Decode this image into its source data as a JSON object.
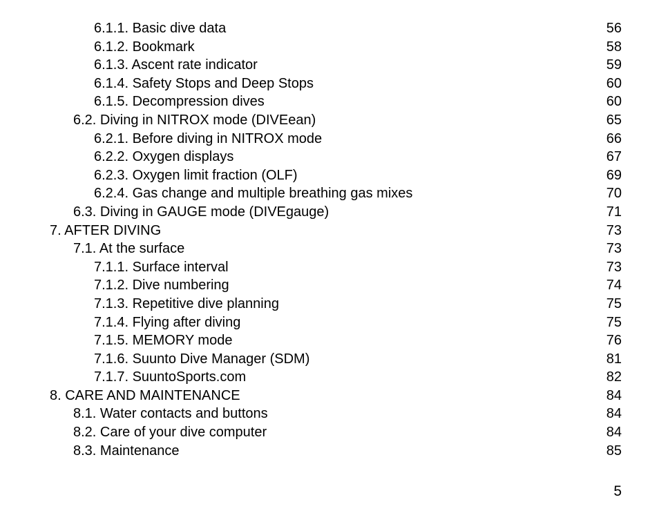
{
  "page_number": "5",
  "toc": [
    {
      "level": 2,
      "label": "6.1.1. Basic dive data",
      "page": "56"
    },
    {
      "level": 2,
      "label": "6.1.2. Bookmark",
      "page": "58"
    },
    {
      "level": 2,
      "label": "6.1.3. Ascent rate indicator",
      "page": "59"
    },
    {
      "level": 2,
      "label": "6.1.4. Safety Stops and Deep Stops",
      "page": "60"
    },
    {
      "level": 2,
      "label": "6.1.5. Decompression dives",
      "page": "60"
    },
    {
      "level": 1,
      "label": "6.2. Diving in NITROX mode (DIVEean)",
      "page": "65"
    },
    {
      "level": 2,
      "label": "6.2.1. Before diving in NITROX mode",
      "page": "66"
    },
    {
      "level": 2,
      "label": "6.2.2. Oxygen displays",
      "page": "67"
    },
    {
      "level": 2,
      "label": "6.2.3. Oxygen limit fraction (OLF)",
      "page": "69"
    },
    {
      "level": 2,
      "label": "6.2.4. Gas change and multiple breathing gas mixes",
      "page": "70"
    },
    {
      "level": 1,
      "label": "6.3. Diving in GAUGE mode (DIVEgauge)",
      "page": "71"
    },
    {
      "level": 0,
      "label": "7. AFTER DIVING",
      "page": "73"
    },
    {
      "level": 1,
      "label": "7.1. At the surface",
      "page": "73"
    },
    {
      "level": 2,
      "label": "7.1.1. Surface interval",
      "page": "73"
    },
    {
      "level": 2,
      "label": "7.1.2. Dive numbering",
      "page": "74"
    },
    {
      "level": 2,
      "label": "7.1.3. Repetitive dive planning",
      "page": "75"
    },
    {
      "level": 2,
      "label": "7.1.4. Flying after diving",
      "page": "75"
    },
    {
      "level": 2,
      "label": "7.1.5. MEMORY mode",
      "page": "76"
    },
    {
      "level": 2,
      "label": "7.1.6. Suunto Dive Manager (SDM)",
      "page": "81"
    },
    {
      "level": 2,
      "label": "7.1.7. SuuntoSports.com",
      "page": "82"
    },
    {
      "level": 0,
      "label": "8. CARE AND MAINTENANCE",
      "page": "84"
    },
    {
      "level": 1,
      "label": "8.1. Water contacts and buttons",
      "page": "84"
    },
    {
      "level": 1,
      "label": "8.2. Care of your dive computer",
      "page": "84"
    },
    {
      "level": 1,
      "label": "8.3. Maintenance",
      "page": "85"
    }
  ]
}
